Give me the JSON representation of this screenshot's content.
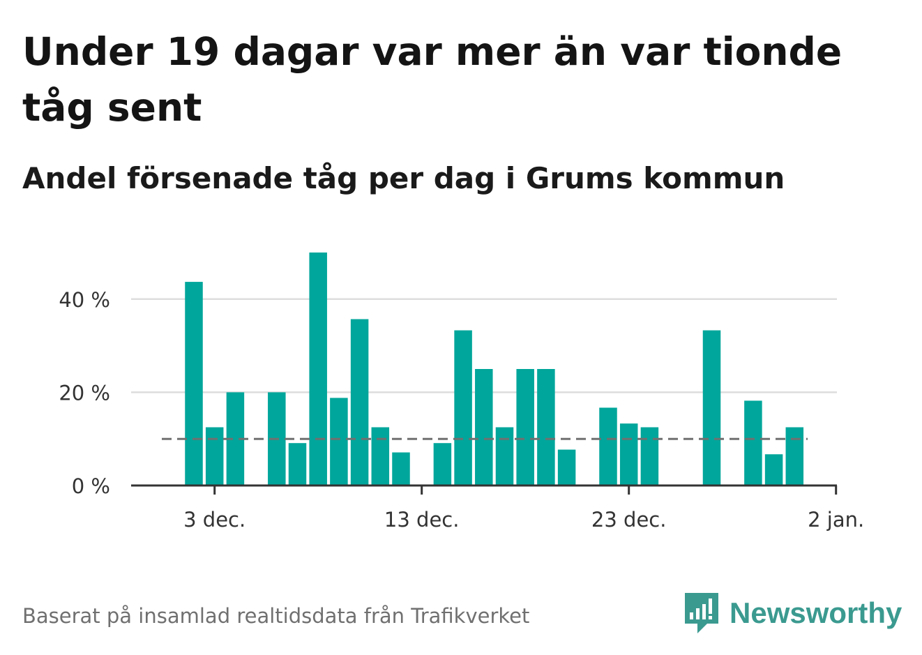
{
  "header": {
    "title": "Under 19 dagar var mer än var tionde tåg sent",
    "subtitle": "Andel försenade tåg per dag i Grums kommun"
  },
  "footer": {
    "source": "Baserat på insamlad realtidsdata från Trafikverket",
    "brand": "Newsworthy",
    "brand_color": "#3b9a90"
  },
  "chart_data": {
    "type": "bar",
    "x_start": "2023-11-30",
    "categories": [
      "2 dec.",
      "3 dec.",
      "4 dec.",
      "5 dec.",
      "6 dec.",
      "7 dec.",
      "8 dec.",
      "9 dec.",
      "10 dec.",
      "11 dec.",
      "12 dec.",
      "13 dec.",
      "14 dec.",
      "15 dec.",
      "16 dec.",
      "17 dec.",
      "18 dec.",
      "19 dec.",
      "20 dec.",
      "21 dec.",
      "22 dec.",
      "23 dec.",
      "24 dec.",
      "25 dec.",
      "26 dec.",
      "27 dec.",
      "28 dec.",
      "29 dec.",
      "30 dec.",
      "31 dec."
    ],
    "values": [
      43.7,
      12.5,
      20,
      null,
      20,
      9.1,
      50,
      18.8,
      35.7,
      12.5,
      7.1,
      null,
      9.1,
      33.3,
      25,
      12.5,
      25,
      25,
      7.7,
      null,
      16.7,
      13.3,
      12.5,
      null,
      null,
      33.3,
      null,
      18.2,
      6.7,
      12.5
    ],
    "reference_line": {
      "value": 10,
      "style": "dashed"
    },
    "y_ticks": [
      "0 %",
      "20 %",
      "40 %"
    ],
    "y_tick_values": [
      0,
      20,
      40
    ],
    "x_ticks": [
      "3 dec.",
      "13 dec.",
      "23 dec.",
      "2 jan."
    ],
    "xlabel": "",
    "ylabel": "",
    "ylim": [
      0,
      50
    ],
    "grid": true,
    "bar_color": "#00a69b",
    "grid_color": "#dddddd",
    "reference_color": "#707070",
    "axis_color": "#333333"
  }
}
